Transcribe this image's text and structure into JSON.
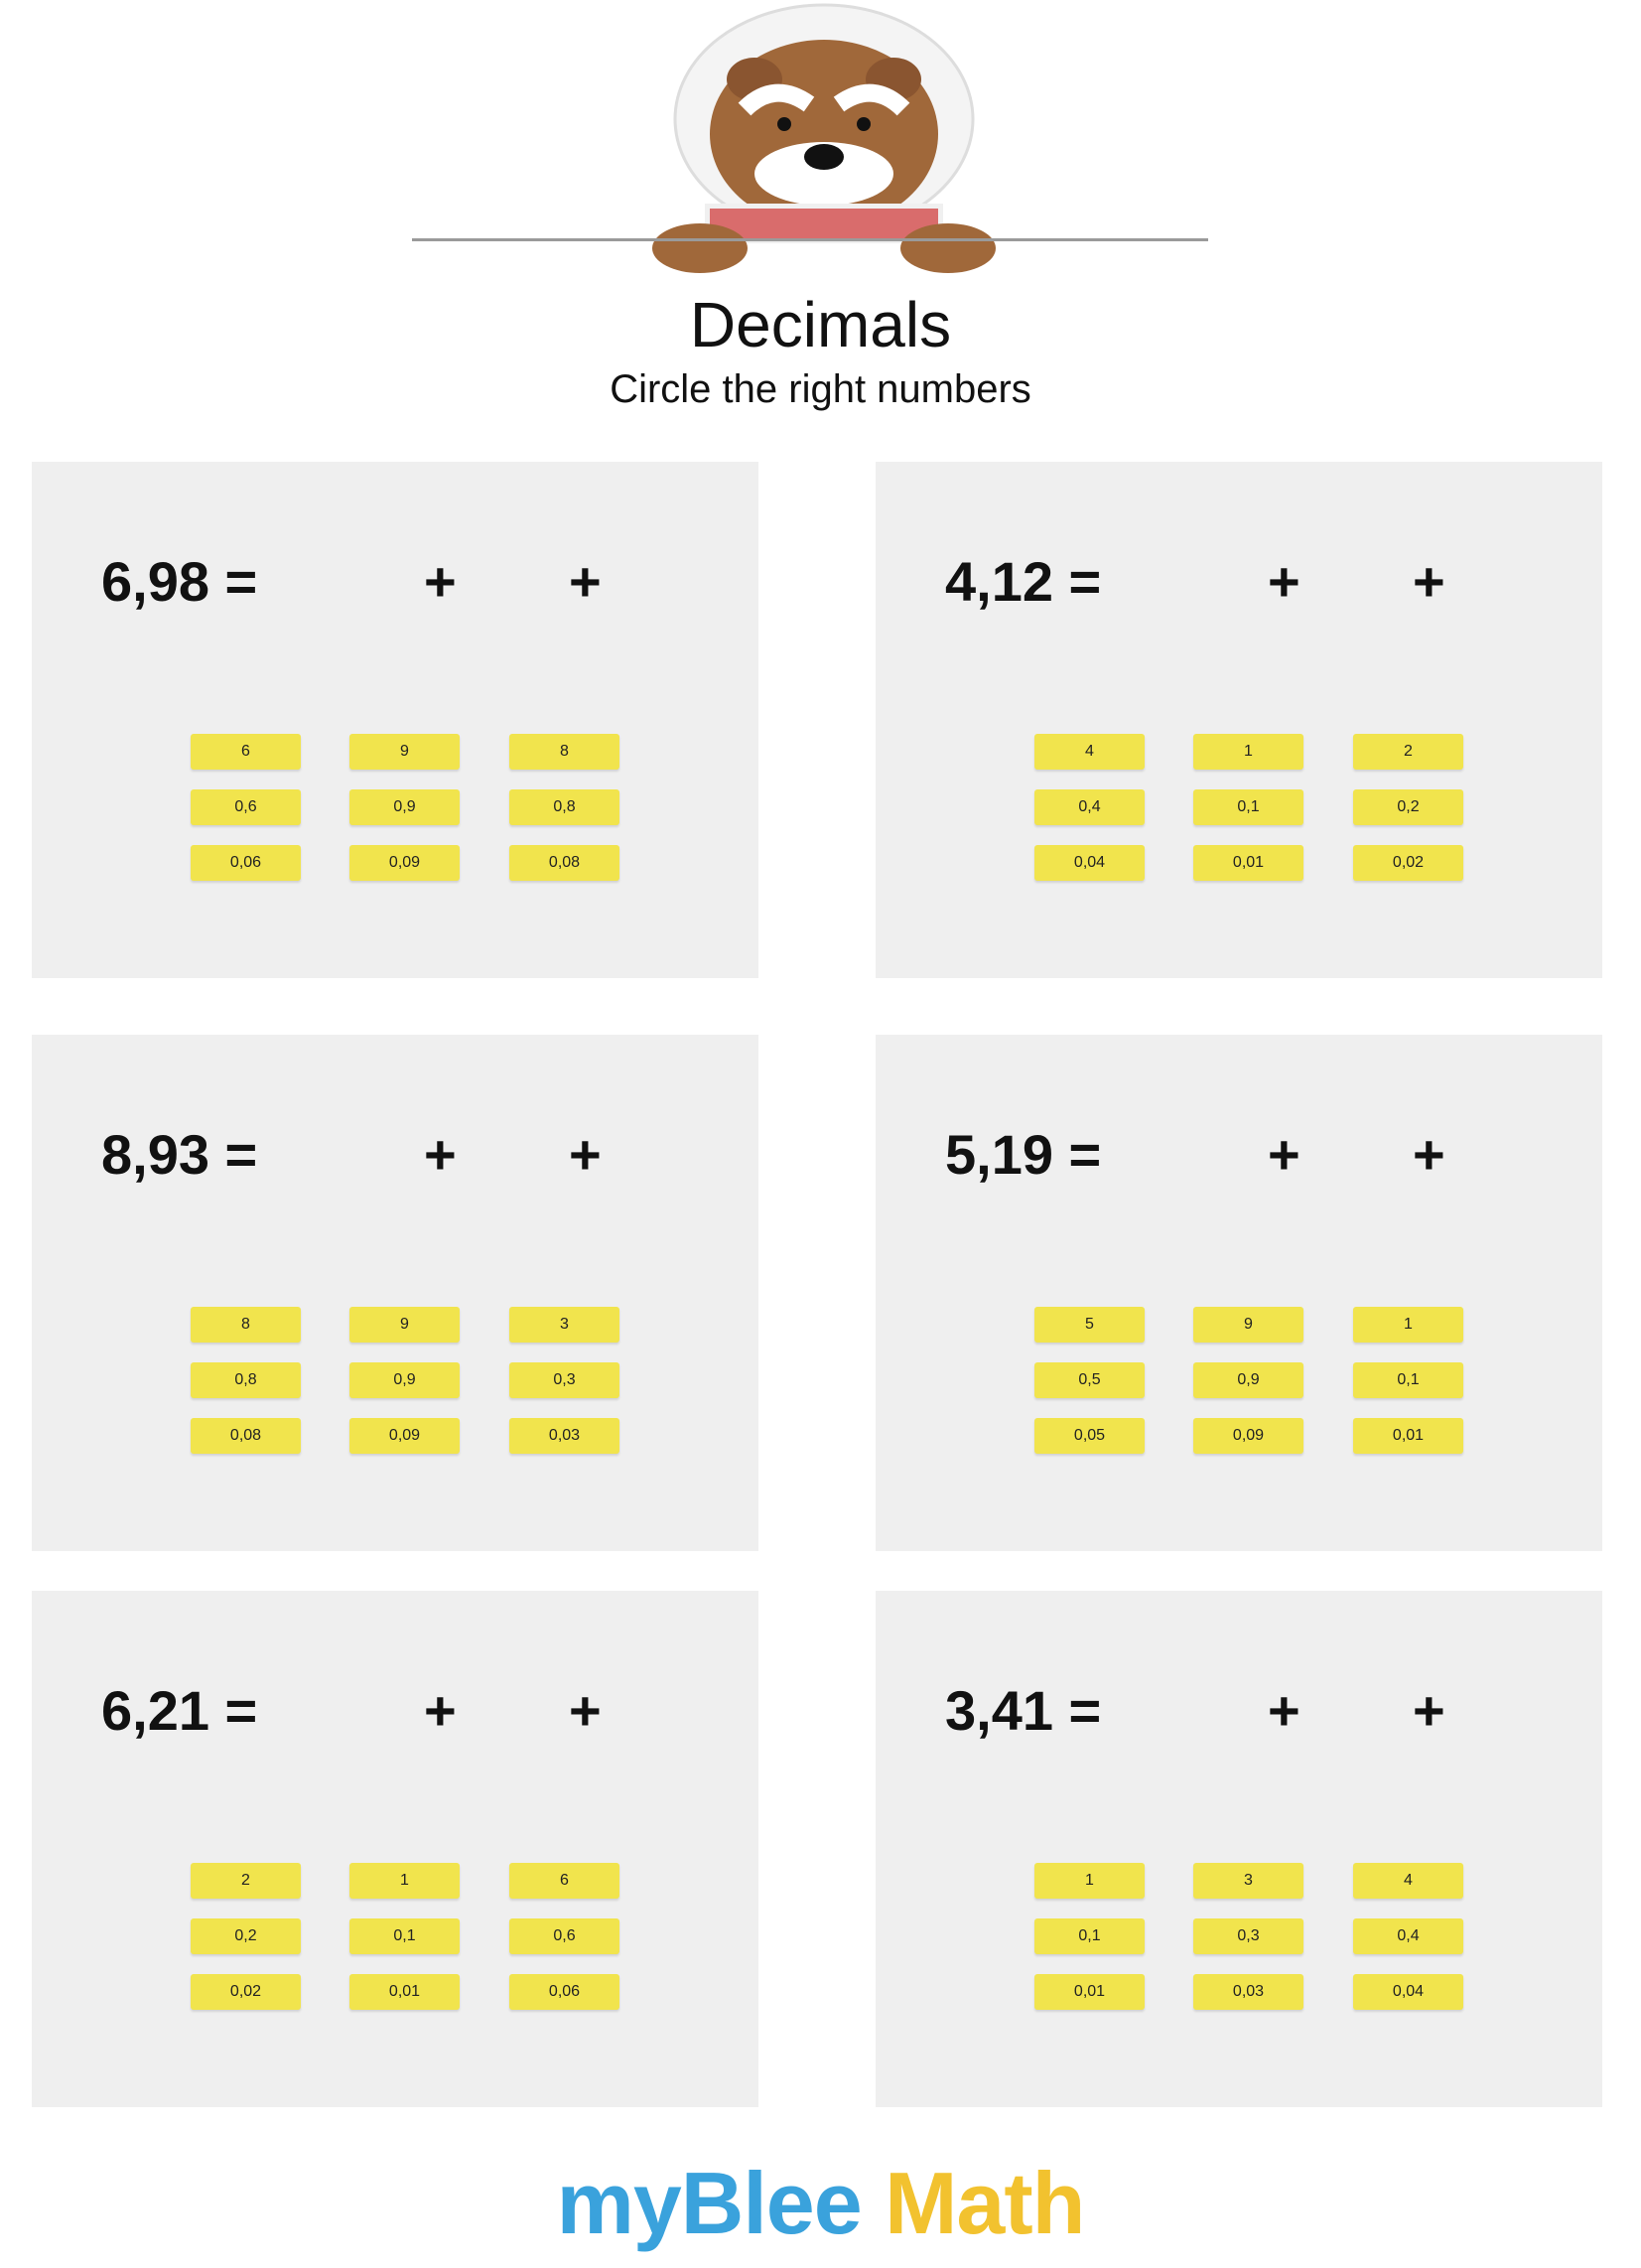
{
  "header": {
    "title": "Decimals",
    "subtitle": "Circle the right numbers"
  },
  "colors": {
    "panel": "#efefef",
    "option": "#f1e44d",
    "logo_blue": "#3aa2dc",
    "logo_yellow": "#f2c22f"
  },
  "exercises": [
    {
      "equation": "6,98 =",
      "plus": "+",
      "options": [
        [
          "6",
          "9",
          "8"
        ],
        [
          "0,6",
          "0,9",
          "0,8"
        ],
        [
          "0,06",
          "0,09",
          "0,08"
        ]
      ]
    },
    {
      "equation": "4,12 =",
      "plus": "+",
      "options": [
        [
          "4",
          "1",
          "2"
        ],
        [
          "0,4",
          "0,1",
          "0,2"
        ],
        [
          "0,04",
          "0,01",
          "0,02"
        ]
      ]
    },
    {
      "equation": "8,93 =",
      "plus": "+",
      "options": [
        [
          "8",
          "9",
          "3"
        ],
        [
          "0,8",
          "0,9",
          "0,3"
        ],
        [
          "0,08",
          "0,09",
          "0,03"
        ]
      ]
    },
    {
      "equation": "5,19 =",
      "plus": "+",
      "options": [
        [
          "5",
          "9",
          "1"
        ],
        [
          "0,5",
          "0,9",
          "0,1"
        ],
        [
          "0,05",
          "0,09",
          "0,01"
        ]
      ]
    },
    {
      "equation": "6,21 =",
      "plus": "+",
      "options": [
        [
          "2",
          "1",
          "6"
        ],
        [
          "0,2",
          "0,1",
          "0,6"
        ],
        [
          "0,02",
          "0,01",
          "0,06"
        ]
      ]
    },
    {
      "equation": "3,41 =",
      "plus": "+",
      "options": [
        [
          "1",
          "3",
          "4"
        ],
        [
          "0,1",
          "0,3",
          "0,4"
        ],
        [
          "0,01",
          "0,03",
          "0,04"
        ]
      ]
    }
  ],
  "footer": {
    "logo_part1": "myBlee",
    "logo_part2": "Math"
  }
}
